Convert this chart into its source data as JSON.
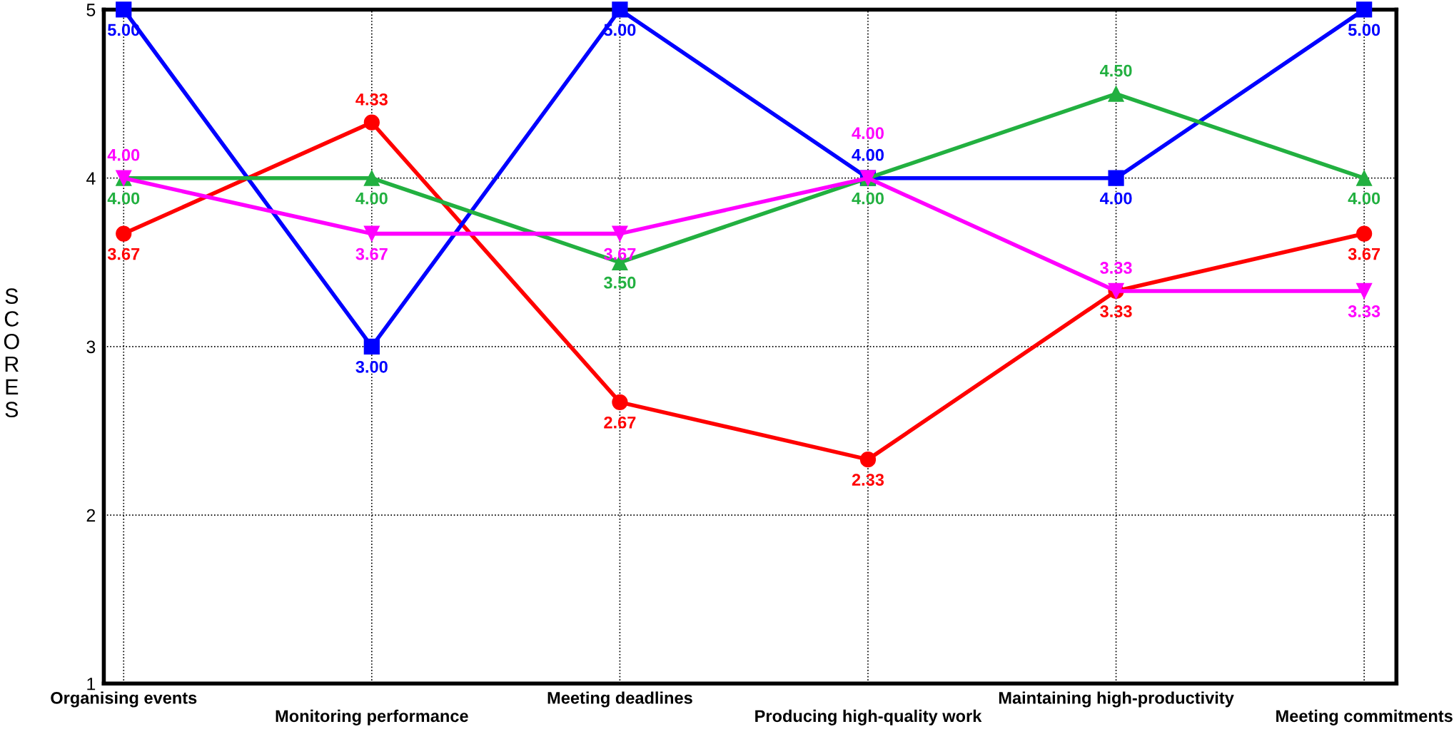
{
  "chart_data": {
    "type": "line",
    "ylabel": "SCORES",
    "categories": [
      "Organising events",
      "Monitoring performance",
      "Meeting deadlines",
      "Producing high-quality work",
      "Maintaining high-productivity",
      "Meeting commitments"
    ],
    "series": [
      {
        "color": "#ff0000",
        "marker": "circle",
        "values": [
          3.67,
          4.33,
          2.67,
          2.33,
          3.33,
          3.67
        ],
        "value_labels": [
          "3.67",
          "4.33",
          "2.67",
          "2.33",
          "3.33",
          "3.67"
        ]
      },
      {
        "color": "#0000ff",
        "marker": "square",
        "values": [
          5,
          3,
          5,
          4,
          4,
          5
        ],
        "value_labels": [
          "5.00",
          "3.00",
          "5.00",
          "4.00",
          "4.00",
          "5.00"
        ]
      },
      {
        "color": "#22b040",
        "marker": "triangle",
        "values": [
          4,
          4,
          3.5,
          4,
          4.5,
          4
        ],
        "value_labels": [
          "4.00",
          "4.00",
          "3.50",
          "4.00",
          "4.50",
          "4.00"
        ]
      },
      {
        "color": "#ff00ff",
        "marker": "triangle_down",
        "values": [
          4,
          3.67,
          3.67,
          4,
          3.33,
          3.33
        ],
        "value_labels": [
          "4.00",
          "3.67",
          "3.67",
          "4.00",
          "3.33",
          "3.33"
        ]
      }
    ],
    "ylim": [
      1,
      5
    ],
    "yticks": [
      1,
      2,
      3,
      4,
      5
    ],
    "grid": true,
    "line_style": "solid"
  }
}
